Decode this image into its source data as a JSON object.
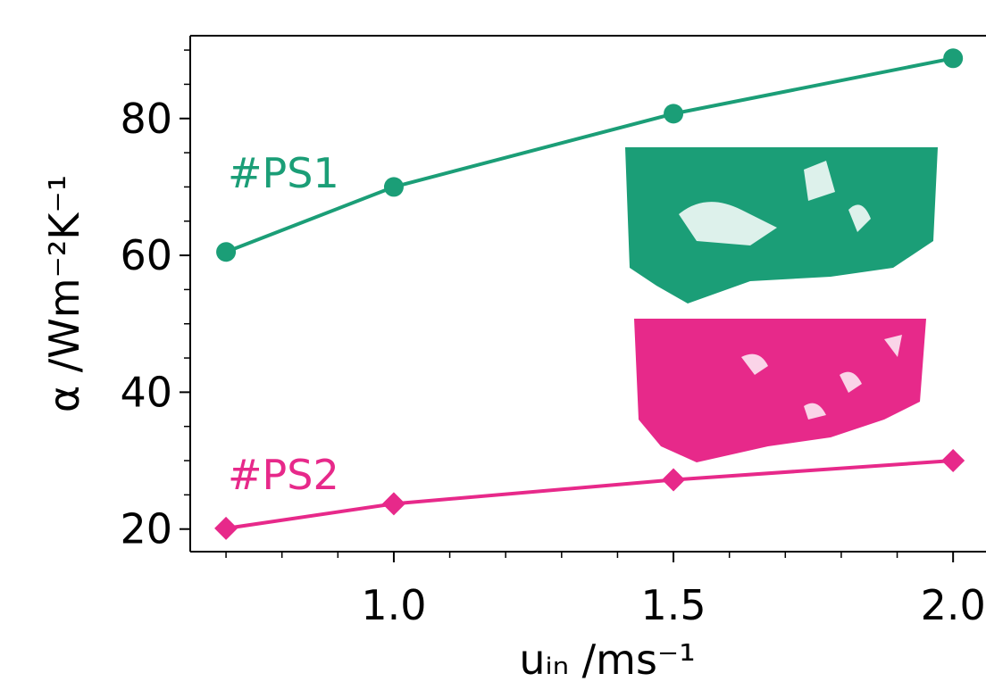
{
  "chart_data": {
    "type": "line",
    "x_label": "uᵢₙ /ms⁻¹",
    "y_label": "α /Wm⁻²K⁻¹",
    "x": [
      0.7,
      1.0,
      1.5,
      2.0
    ],
    "series": [
      {
        "name": "#PS1",
        "color": "#1b9e77",
        "marker": "circle",
        "values": [
          60.5,
          70,
          80.7,
          88.8
        ]
      },
      {
        "name": "#PS2",
        "color": "#e7298a",
        "marker": "diamond",
        "values": [
          20.1,
          23.7,
          27.2,
          30
        ]
      }
    ],
    "xlim": [
      0.636,
      2.07
    ],
    "ylim": [
      16.7,
      92.1
    ],
    "xticks": [
      {
        "value": 1.0,
        "label": "1.0"
      },
      {
        "value": 1.5,
        "label": "1.5"
      },
      {
        "value": 2.0,
        "label": "2.0"
      }
    ],
    "yticks": [
      20,
      40,
      60,
      80
    ],
    "xminorticks": [
      0.7,
      0.8,
      0.9,
      1.1,
      1.2,
      1.3,
      1.4,
      1.6,
      1.7,
      1.8,
      1.9
    ],
    "yminorticks": [
      25,
      30,
      35,
      45,
      50,
      55,
      65,
      70,
      75,
      85,
      90
    ]
  }
}
